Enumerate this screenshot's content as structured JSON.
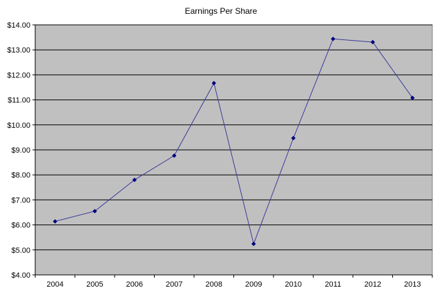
{
  "chart_data": {
    "type": "line",
    "title": "Earnings Per Share",
    "xlabel": "",
    "ylabel": "",
    "categories": [
      "2004",
      "2005",
      "2006",
      "2007",
      "2008",
      "2009",
      "2010",
      "2011",
      "2012",
      "2013"
    ],
    "series": [
      {
        "values": [
          6.14,
          6.55,
          7.8,
          8.77,
          11.67,
          5.24,
          9.47,
          13.44,
          13.31,
          11.08
        ]
      }
    ],
    "ylim": [
      4,
      14
    ],
    "yticks": [
      14,
      13,
      12,
      11,
      10,
      9,
      8,
      7,
      6,
      5,
      4
    ],
    "ytick_labels": [
      "$14.00",
      "$13.00",
      "$12.00",
      "$11.00",
      "$10.00",
      "$9.00",
      "$8.00",
      "$7.00",
      "$6.00",
      "$5.00",
      "$4.00"
    ],
    "grid": true,
    "legend": "none",
    "colors": {
      "plot_background": "#c0c0c0",
      "line": "#3a3a9a",
      "marker": "#000080",
      "gridline": "#000000"
    }
  }
}
